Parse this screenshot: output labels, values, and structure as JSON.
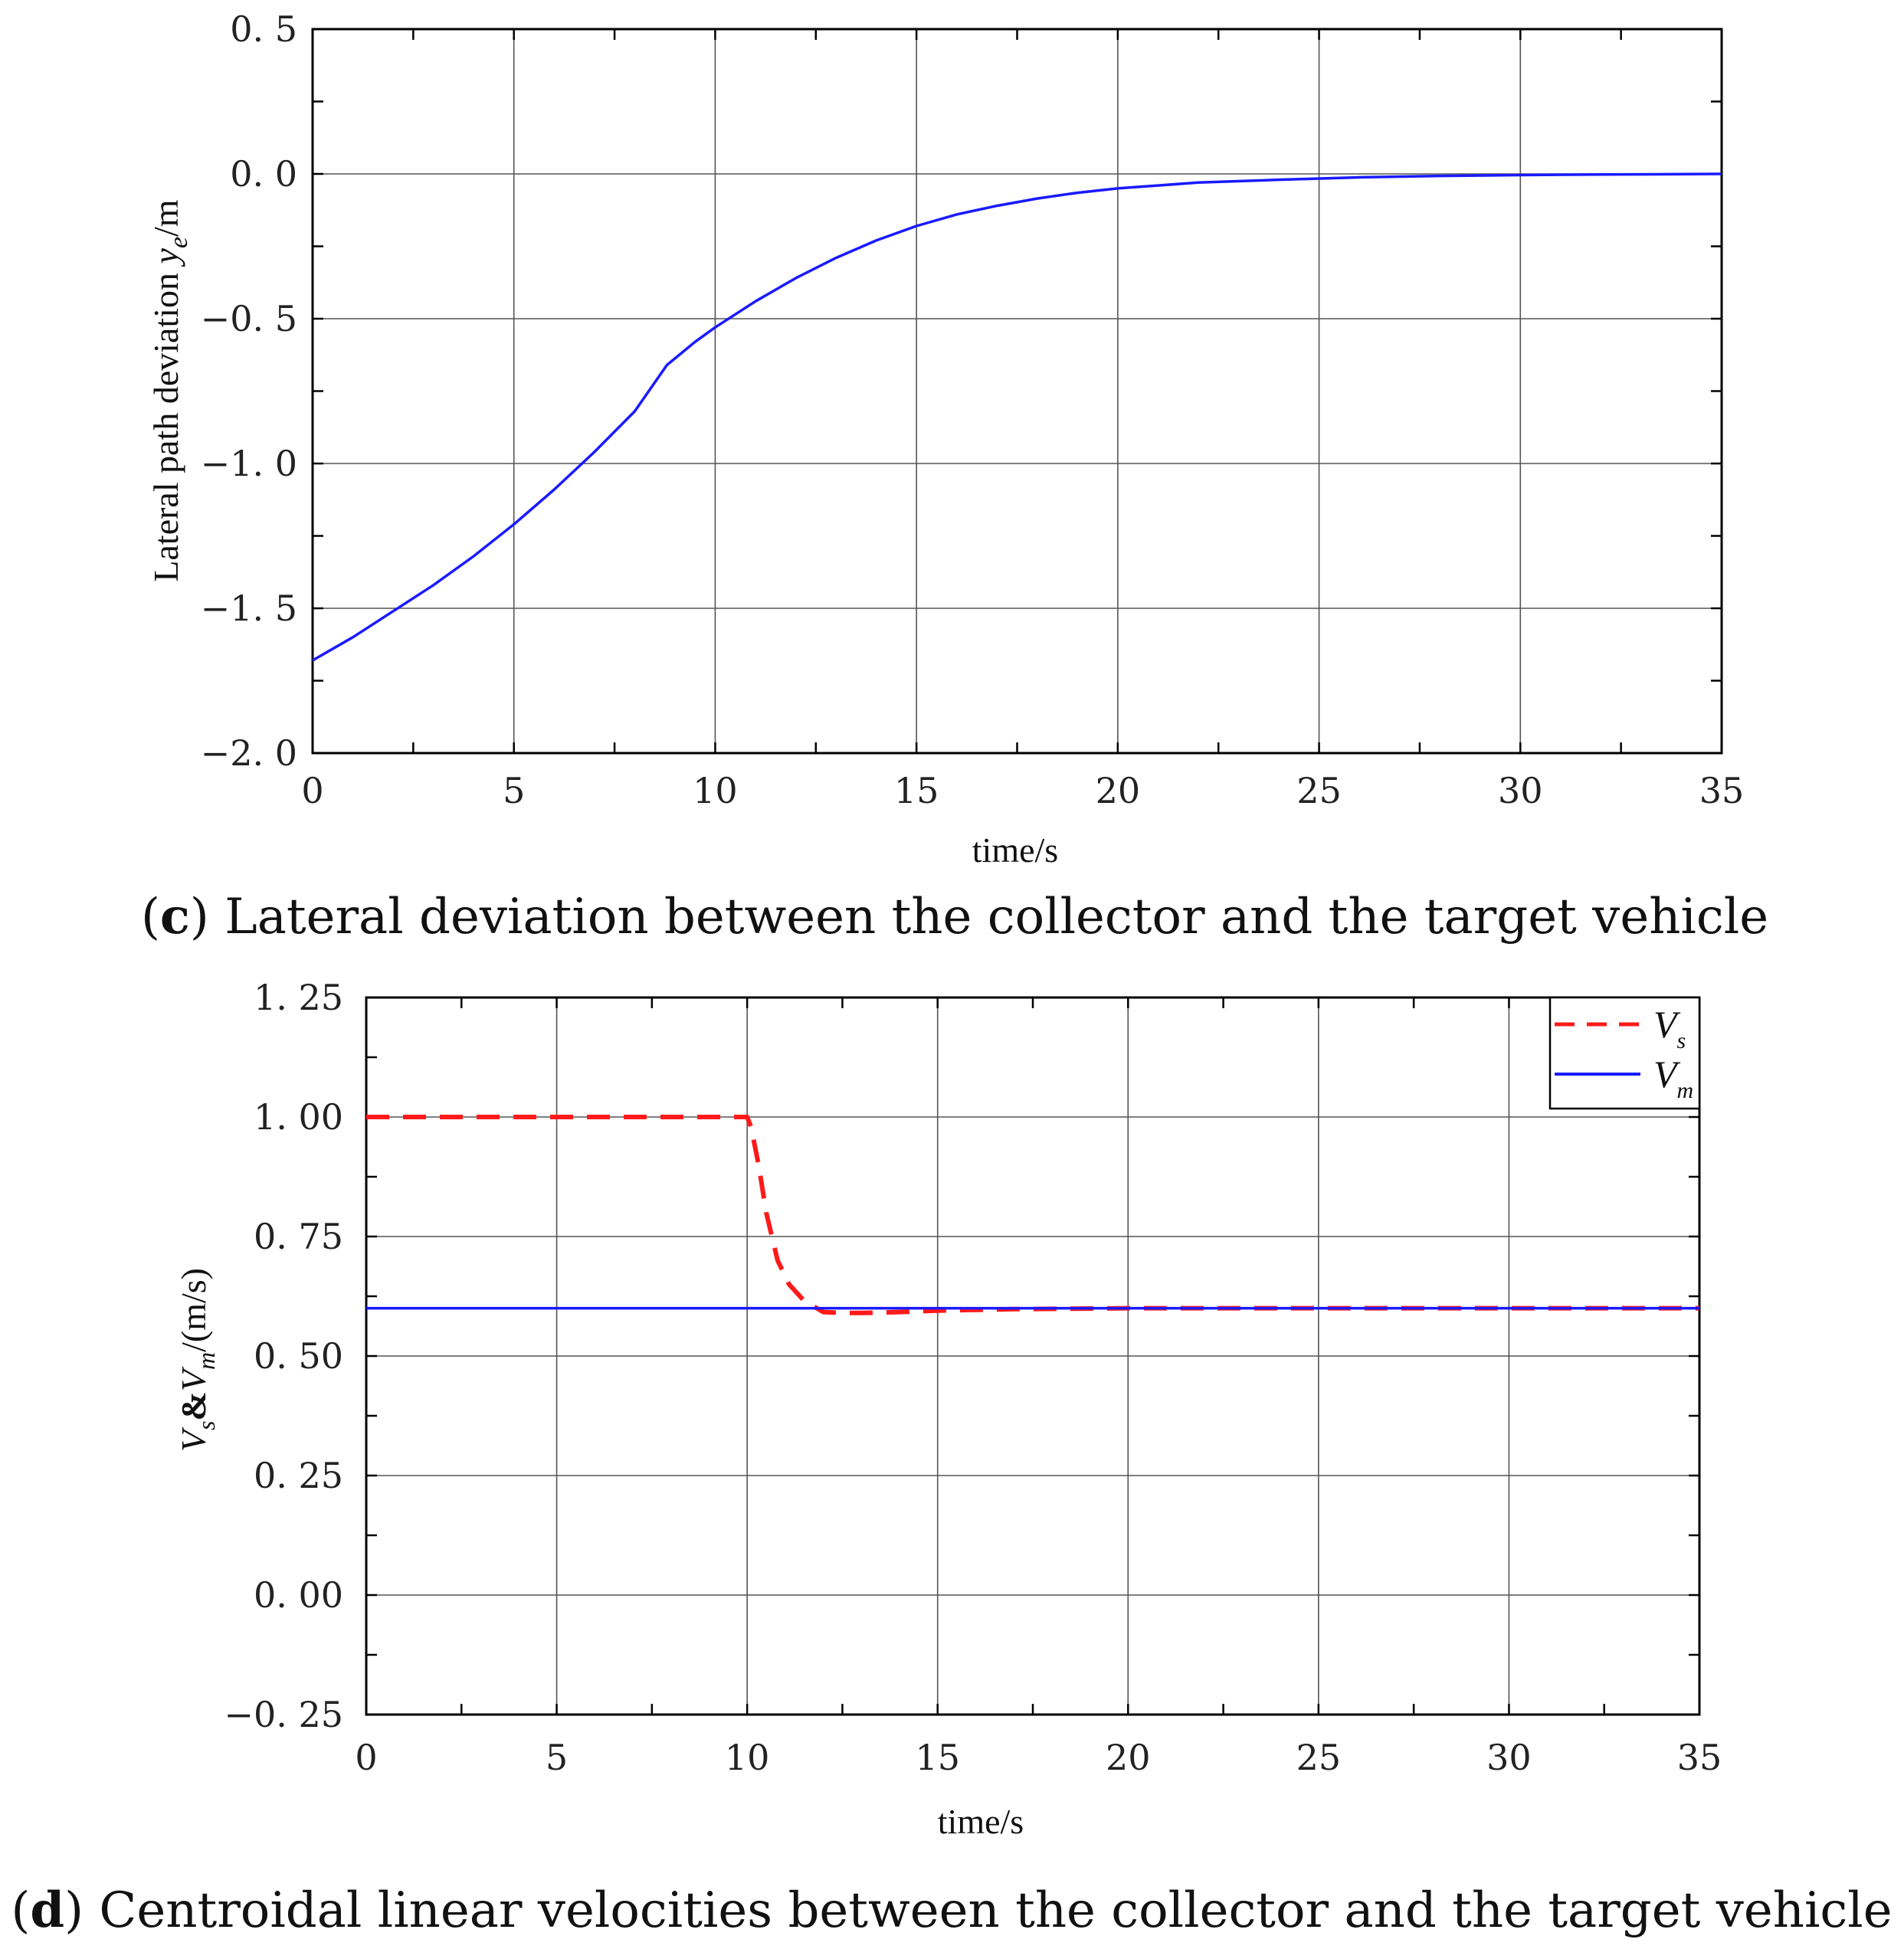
{
  "chart_data": [
    {
      "type": "line",
      "panel": "c",
      "caption_letter": "c",
      "caption_text": ") Lateral deviation between the collector and the target vehicle",
      "xlabel": "time/s",
      "ylabel": {
        "prefix": "Lateral path deviation ",
        "var": "y",
        "sub": "e",
        "suffix": "/m"
      },
      "xlim": [
        0,
        35
      ],
      "ylim": [
        -2.0,
        0.5
      ],
      "x_ticks": [
        0,
        5,
        10,
        15,
        20,
        25,
        30,
        35
      ],
      "y_ticks": [
        -2.0,
        -1.5,
        -1.0,
        -0.5,
        0.0,
        0.5
      ],
      "x_tick_labels": [
        "0",
        "5",
        "10",
        "15",
        "20",
        "25",
        "30",
        "35"
      ],
      "y_tick_labels": [
        "−2. 0",
        "−1. 5",
        "−1. 0",
        "−0. 5",
        "0. 0",
        "0. 5"
      ],
      "grid": true,
      "series": [
        {
          "color": "#1a1aff",
          "style": "solid",
          "x": [
            0,
            1,
            2,
            3,
            4,
            5,
            6,
            7,
            8,
            8.8,
            9.5,
            10,
            11,
            12,
            13,
            14,
            15,
            16,
            17,
            18,
            19,
            20,
            22,
            24,
            26,
            28,
            30,
            32,
            35
          ],
          "y": [
            -1.68,
            -1.6,
            -1.51,
            -1.42,
            -1.32,
            -1.21,
            -1.09,
            -0.96,
            -0.82,
            -0.66,
            -0.58,
            -0.53,
            -0.44,
            -0.36,
            -0.29,
            -0.23,
            -0.18,
            -0.14,
            -0.11,
            -0.085,
            -0.065,
            -0.05,
            -0.03,
            -0.02,
            -0.012,
            -0.007,
            -0.004,
            -0.002,
            0.0
          ]
        }
      ]
    },
    {
      "type": "line",
      "panel": "d",
      "caption_letter": "d",
      "caption_text": ") Centroidal linear velocities between the collector and the target vehicle",
      "xlabel": "time/s",
      "ylabel": {
        "v1": "V",
        "s1": "s",
        "amp": "&",
        "v2": "V",
        "s2": "m",
        "suffix": "/(m/s)"
      },
      "xlim": [
        0,
        35
      ],
      "ylim": [
        -0.25,
        1.25
      ],
      "x_ticks": [
        0,
        5,
        10,
        15,
        20,
        25,
        30,
        35
      ],
      "y_ticks": [
        -0.25,
        0.0,
        0.25,
        0.5,
        0.75,
        1.0,
        1.25
      ],
      "x_tick_labels": [
        "0",
        "5",
        "10",
        "15",
        "20",
        "25",
        "30",
        "35"
      ],
      "y_tick_labels": [
        "−0. 25",
        "0. 00",
        "0. 25",
        "0. 50",
        "0. 75",
        "1. 00",
        "1. 25"
      ],
      "grid": true,
      "legend": {
        "placement": "top-right"
      },
      "series": [
        {
          "name": "V",
          "name_sub": "s",
          "color": "#ff1a1a",
          "style": "dashed",
          "x": [
            0,
            10,
            10.1,
            10.3,
            10.5,
            10.8,
            11.1,
            11.5,
            12,
            12.5,
            13,
            14,
            15,
            17,
            20,
            25,
            30,
            35
          ],
          "y": [
            1.0,
            1.0,
            0.98,
            0.9,
            0.8,
            0.7,
            0.65,
            0.615,
            0.592,
            0.59,
            0.59,
            0.592,
            0.595,
            0.598,
            0.6,
            0.6,
            0.6,
            0.6
          ]
        },
        {
          "name": "V",
          "name_sub": "m",
          "color": "#1a1aff",
          "style": "solid",
          "x": [
            0,
            35
          ],
          "y": [
            0.6,
            0.6
          ]
        }
      ]
    }
  ]
}
